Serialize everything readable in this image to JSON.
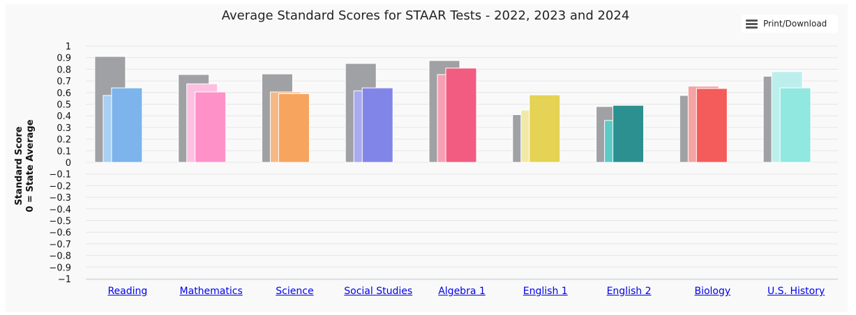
{
  "menu": {
    "label": "Print/Download",
    "icon": "hamburger-icon"
  },
  "chart_data": {
    "type": "bar",
    "title": "Average Standard Scores for STAAR Tests - 2022, 2023 and 2024",
    "ylabel_line1": "Standard Score",
    "ylabel_line2": "0 = State Average",
    "ylim": [
      -1,
      1
    ],
    "ytick_step": 0.1,
    "grid": true,
    "categories": [
      "Reading",
      "Mathematics",
      "Science",
      "Social Studies",
      "Algebra 1",
      "English 1",
      "English 2",
      "Biology",
      "U.S. History"
    ],
    "series": [
      {
        "values": [
          0.91,
          0.755,
          0.76,
          0.85,
          0.875,
          0.41,
          0.48,
          0.575,
          0.74
        ],
        "colors": [
          "#a0a1a5",
          "#a0a1a5",
          "#a0a1a5",
          "#a0a1a5",
          "#a0a1a5",
          "#a0a1a5",
          "#a0a1a5",
          "#a0a1a5",
          "#a0a1a5"
        ]
      },
      {
        "values": [
          0.575,
          0.675,
          0.605,
          0.615,
          0.755,
          0.45,
          0.36,
          0.655,
          0.78
        ],
        "colors": [
          "#a9cff2",
          "#fec0e0",
          "#f7b887",
          "#aaaaef",
          "#f6a0b4",
          "#f2e9a9",
          "#5ccbc8",
          "#f6a3a3",
          "#bcefec"
        ]
      },
      {
        "values": [
          0.64,
          0.605,
          0.59,
          0.64,
          0.81,
          0.58,
          0.49,
          0.635,
          0.64
        ],
        "colors": [
          "#7cb4eb",
          "#ff91c9",
          "#f7a45e",
          "#8285e8",
          "#f15c80",
          "#e4d354",
          "#2b908f",
          "#f45b5b",
          "#91e8e1"
        ]
      }
    ]
  }
}
